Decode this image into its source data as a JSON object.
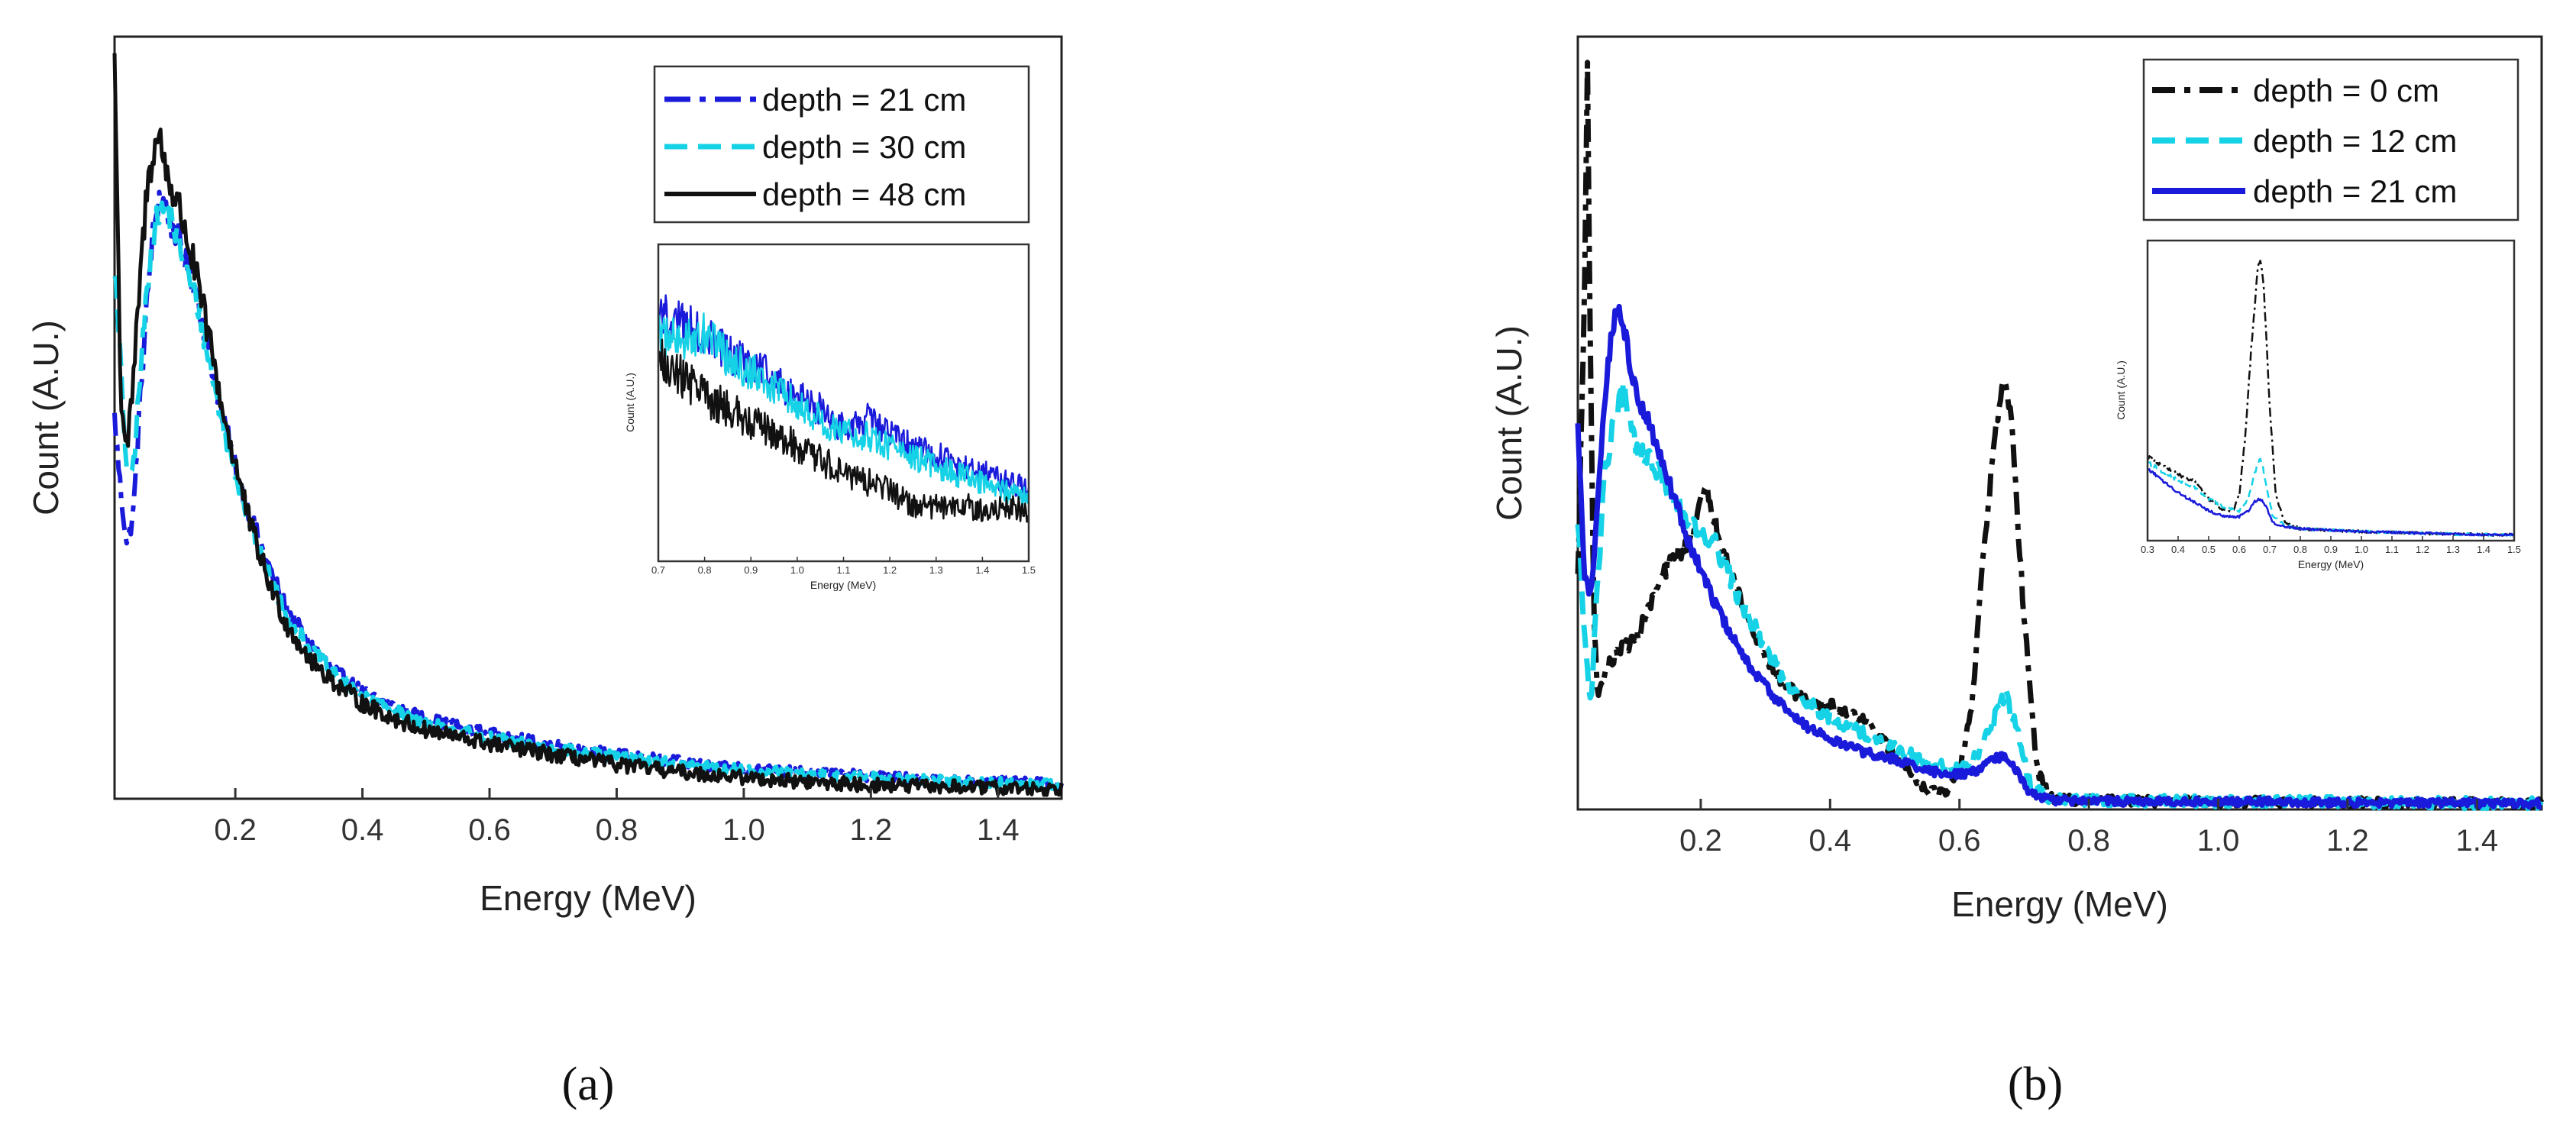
{
  "chart_data": [
    {
      "type": "line",
      "panel_label": "(a)",
      "xlabel": "Energy (MeV)",
      "ylabel": "Count (A.U.)",
      "xlim": [
        0.01,
        1.5
      ],
      "ylim": [
        0,
        1.0
      ],
      "xticks": [
        {
          "value": 0.2,
          "label": "0.2"
        },
        {
          "value": 0.4,
          "label": "0.4"
        },
        {
          "value": 0.6,
          "label": "0.6"
        },
        {
          "value": 0.8,
          "label": "0.8"
        },
        {
          "value": 1.0,
          "label": "1.0"
        },
        {
          "value": 1.2,
          "label": "1.2"
        },
        {
          "value": 1.4,
          "label": "1.4"
        }
      ],
      "legend_position": "top-right",
      "series": [
        {
          "name": "depth = 21 cm",
          "color": "#1a1adb",
          "dash": "dashdot",
          "width": 6,
          "noise": 0.016,
          "x": [
            0.01,
            0.02,
            0.03,
            0.04,
            0.05,
            0.06,
            0.07,
            0.08,
            0.09,
            0.1,
            0.11,
            0.12,
            0.14,
            0.16,
            0.18,
            0.2,
            0.22,
            0.25,
            0.28,
            0.32,
            0.36,
            0.4,
            0.45,
            0.5,
            0.6,
            0.7,
            0.8,
            0.9,
            1.0,
            1.1,
            1.2,
            1.3,
            1.4,
            1.5
          ],
          "y": [
            0.5,
            0.4,
            0.33,
            0.38,
            0.52,
            0.64,
            0.74,
            0.79,
            0.78,
            0.75,
            0.74,
            0.71,
            0.66,
            0.58,
            0.5,
            0.44,
            0.38,
            0.31,
            0.25,
            0.2,
            0.165,
            0.14,
            0.12,
            0.105,
            0.085,
            0.07,
            0.058,
            0.048,
            0.04,
            0.034,
            0.03,
            0.025,
            0.022,
            0.02
          ]
        },
        {
          "name": "depth = 30 cm",
          "color": "#16d2e6",
          "dash": "dashed",
          "width": 6,
          "noise": 0.016,
          "x": [
            0.01,
            0.02,
            0.03,
            0.04,
            0.05,
            0.06,
            0.07,
            0.08,
            0.09,
            0.1,
            0.11,
            0.12,
            0.14,
            0.16,
            0.18,
            0.2,
            0.22,
            0.25,
            0.28,
            0.32,
            0.36,
            0.4,
            0.45,
            0.5,
            0.6,
            0.7,
            0.8,
            0.9,
            1.0,
            1.1,
            1.2,
            1.3,
            1.4,
            1.5
          ],
          "y": [
            0.7,
            0.56,
            0.42,
            0.44,
            0.55,
            0.66,
            0.74,
            0.77,
            0.77,
            0.76,
            0.73,
            0.7,
            0.65,
            0.57,
            0.49,
            0.43,
            0.37,
            0.3,
            0.24,
            0.195,
            0.16,
            0.135,
            0.115,
            0.1,
            0.08,
            0.066,
            0.055,
            0.045,
            0.038,
            0.032,
            0.028,
            0.024,
            0.021,
            0.019
          ]
        },
        {
          "name": "depth = 48 cm",
          "color": "#111111",
          "dash": "solid",
          "width": 5,
          "noise": 0.022,
          "x": [
            0.01,
            0.015,
            0.02,
            0.03,
            0.04,
            0.05,
            0.06,
            0.07,
            0.08,
            0.09,
            0.1,
            0.11,
            0.12,
            0.14,
            0.16,
            0.18,
            0.2,
            0.22,
            0.25,
            0.28,
            0.32,
            0.36,
            0.4,
            0.45,
            0.5,
            0.6,
            0.7,
            0.8,
            0.9,
            1.0,
            1.1,
            1.2,
            1.3,
            1.4,
            1.5
          ],
          "y": [
            0.98,
            0.75,
            0.52,
            0.46,
            0.55,
            0.68,
            0.79,
            0.85,
            0.87,
            0.83,
            0.8,
            0.78,
            0.75,
            0.68,
            0.6,
            0.51,
            0.44,
            0.37,
            0.29,
            0.23,
            0.18,
            0.15,
            0.125,
            0.105,
            0.09,
            0.072,
            0.058,
            0.045,
            0.035,
            0.028,
            0.022,
            0.018,
            0.016,
            0.014,
            0.013
          ]
        }
      ],
      "inset": {
        "xlabel": "Energy (MeV)",
        "ylabel": "Count (A.U.)",
        "xlim": [
          0.7,
          1.5
        ],
        "ylim": [
          0,
          1.0
        ],
        "xticks": [
          {
            "value": 0.7,
            "label": "0.7"
          },
          {
            "value": 0.8,
            "label": "0.8"
          },
          {
            "value": 0.9,
            "label": "0.9"
          },
          {
            "value": 1.0,
            "label": "1.0"
          },
          {
            "value": 1.1,
            "label": "1.1"
          },
          {
            "value": 1.2,
            "label": "1.2"
          },
          {
            "value": 1.3,
            "label": "1.3"
          },
          {
            "value": 1.4,
            "label": "1.4"
          },
          {
            "value": 1.5,
            "label": "1.5"
          }
        ],
        "series": [
          {
            "name": "depth = 21 cm",
            "color": "#1a1adb",
            "dash": "solid",
            "width": 2.5,
            "noise": 0.06,
            "x": [
              0.7,
              0.75,
              0.8,
              0.85,
              0.9,
              0.95,
              1.0,
              1.05,
              1.1,
              1.15,
              1.2,
              1.25,
              1.3,
              1.35,
              1.4,
              1.45,
              1.5
            ],
            "y": [
              0.78,
              0.75,
              0.72,
              0.66,
              0.61,
              0.58,
              0.52,
              0.48,
              0.42,
              0.45,
              0.4,
              0.36,
              0.34,
              0.3,
              0.28,
              0.25,
              0.23
            ]
          },
          {
            "name": "depth = 30 cm",
            "color": "#16d2e6",
            "dash": "solid",
            "width": 2.5,
            "noise": 0.06,
            "x": [
              0.7,
              0.75,
              0.8,
              0.85,
              0.9,
              0.95,
              1.0,
              1.05,
              1.1,
              1.15,
              1.2,
              1.25,
              1.3,
              1.35,
              1.4,
              1.45,
              1.5
            ],
            "y": [
              0.72,
              0.7,
              0.72,
              0.64,
              0.6,
              0.55,
              0.5,
              0.45,
              0.4,
              0.4,
              0.36,
              0.33,
              0.3,
              0.27,
              0.25,
              0.22,
              0.2
            ]
          },
          {
            "name": "depth = 48 cm",
            "color": "#111111",
            "dash": "solid",
            "width": 2.5,
            "noise": 0.07,
            "x": [
              0.7,
              0.75,
              0.8,
              0.85,
              0.9,
              0.95,
              1.0,
              1.05,
              1.1,
              1.15,
              1.2,
              1.25,
              1.3,
              1.35,
              1.4,
              1.45,
              1.5
            ],
            "y": [
              0.66,
              0.58,
              0.52,
              0.48,
              0.44,
              0.4,
              0.36,
              0.32,
              0.28,
              0.25,
              0.22,
              0.18,
              0.17,
              0.18,
              0.16,
              0.17,
              0.16
            ]
          }
        ]
      }
    },
    {
      "type": "line",
      "panel_label": "(b)",
      "xlabel": "Energy (MeV)",
      "ylabel": "Count (A.U.)",
      "xlim": [
        0.01,
        1.5
      ],
      "ylim": [
        0,
        1.0
      ],
      "xticks": [
        {
          "value": 0.2,
          "label": "0.2"
        },
        {
          "value": 0.4,
          "label": "0.4"
        },
        {
          "value": 0.6,
          "label": "0.6"
        },
        {
          "value": 0.8,
          "label": "0.8"
        },
        {
          "value": 1.0,
          "label": "1.0"
        },
        {
          "value": 1.2,
          "label": "1.2"
        },
        {
          "value": 1.4,
          "label": "1.4"
        }
      ],
      "legend_position": "top-right",
      "series": [
        {
          "name": "depth = 0 cm",
          "color": "#111111",
          "dash": "dashdot",
          "width": 7,
          "noise": 0.015,
          "x": [
            0.01,
            0.02,
            0.025,
            0.03,
            0.035,
            0.04,
            0.05,
            0.06,
            0.08,
            0.1,
            0.12,
            0.14,
            0.16,
            0.18,
            0.2,
            0.21,
            0.22,
            0.25,
            0.28,
            0.32,
            0.36,
            0.4,
            0.45,
            0.5,
            0.55,
            0.58,
            0.6,
            0.62,
            0.64,
            0.66,
            0.67,
            0.68,
            0.7,
            0.72,
            0.74,
            0.78,
            0.85,
            0.95,
            1.05,
            1.15,
            1.25,
            1.35,
            1.45,
            1.5
          ],
          "y": [
            0.3,
            0.65,
            0.97,
            0.55,
            0.25,
            0.15,
            0.17,
            0.19,
            0.21,
            0.22,
            0.26,
            0.3,
            0.33,
            0.34,
            0.4,
            0.41,
            0.38,
            0.3,
            0.23,
            0.17,
            0.14,
            0.135,
            0.12,
            0.07,
            0.025,
            0.02,
            0.05,
            0.14,
            0.36,
            0.52,
            0.55,
            0.5,
            0.25,
            0.05,
            0.015,
            0.012,
            0.011,
            0.01,
            0.01,
            0.009,
            0.009,
            0.008,
            0.008,
            0.008
          ]
        },
        {
          "name": "depth = 12 cm",
          "color": "#16d2e6",
          "dash": "dashed",
          "width": 7,
          "noise": 0.018,
          "x": [
            0.01,
            0.02,
            0.03,
            0.04,
            0.05,
            0.06,
            0.07,
            0.08,
            0.09,
            0.1,
            0.12,
            0.14,
            0.16,
            0.18,
            0.2,
            0.22,
            0.25,
            0.28,
            0.32,
            0.36,
            0.4,
            0.45,
            0.5,
            0.55,
            0.6,
            0.63,
            0.65,
            0.67,
            0.69,
            0.71,
            0.74,
            0.8,
            0.9,
            1.0,
            1.1,
            1.2,
            1.3,
            1.4,
            1.5
          ],
          "y": [
            0.38,
            0.22,
            0.14,
            0.28,
            0.42,
            0.48,
            0.52,
            0.54,
            0.52,
            0.47,
            0.45,
            0.43,
            0.4,
            0.37,
            0.36,
            0.35,
            0.29,
            0.24,
            0.18,
            0.14,
            0.12,
            0.1,
            0.08,
            0.06,
            0.05,
            0.07,
            0.11,
            0.15,
            0.1,
            0.03,
            0.015,
            0.012,
            0.011,
            0.01,
            0.01,
            0.009,
            0.009,
            0.008,
            0.008
          ]
        },
        {
          "name": "depth = 21 cm",
          "color": "#1a1adb",
          "dash": "solid",
          "width": 7,
          "noise": 0.012,
          "x": [
            0.01,
            0.02,
            0.03,
            0.04,
            0.05,
            0.06,
            0.07,
            0.08,
            0.09,
            0.1,
            0.12,
            0.14,
            0.16,
            0.18,
            0.2,
            0.22,
            0.25,
            0.28,
            0.32,
            0.36,
            0.4,
            0.45,
            0.5,
            0.55,
            0.6,
            0.63,
            0.65,
            0.67,
            0.69,
            0.71,
            0.74,
            0.8,
            0.9,
            1.0,
            1.1,
            1.2,
            1.3,
            1.4,
            1.5
          ],
          "y": [
            0.5,
            0.3,
            0.28,
            0.38,
            0.52,
            0.6,
            0.65,
            0.63,
            0.58,
            0.54,
            0.5,
            0.45,
            0.4,
            0.35,
            0.31,
            0.27,
            0.22,
            0.18,
            0.14,
            0.11,
            0.09,
            0.075,
            0.065,
            0.05,
            0.045,
            0.05,
            0.065,
            0.07,
            0.05,
            0.02,
            0.012,
            0.011,
            0.01,
            0.01,
            0.01,
            0.009,
            0.009,
            0.008,
            0.008
          ]
        }
      ],
      "inset": {
        "xlabel": "Energy (MeV)",
        "ylabel": "Count (A.U.)",
        "xlim": [
          0.3,
          1.5
        ],
        "ylim": [
          0,
          1.0
        ],
        "xticks": [
          {
            "value": 0.3,
            "label": "0.3"
          },
          {
            "value": 0.4,
            "label": "0.4"
          },
          {
            "value": 0.5,
            "label": "0.5"
          },
          {
            "value": 0.6,
            "label": "0.6"
          },
          {
            "value": 0.7,
            "label": "0.7"
          },
          {
            "value": 0.8,
            "label": "0.8"
          },
          {
            "value": 0.9,
            "label": "0.9"
          },
          {
            "value": 1.0,
            "label": "1.0"
          },
          {
            "value": 1.1,
            "label": "1.1"
          },
          {
            "value": 1.2,
            "label": "1.2"
          },
          {
            "value": 1.3,
            "label": "1.3"
          },
          {
            "value": 1.4,
            "label": "1.4"
          },
          {
            "value": 1.5,
            "label": "1.5"
          }
        ],
        "series": [
          {
            "name": "depth = 0 cm",
            "color": "#111111",
            "dash": "dashdot",
            "width": 2.5,
            "noise": 0.01,
            "x": [
              0.3,
              0.35,
              0.4,
              0.45,
              0.5,
              0.55,
              0.58,
              0.6,
              0.62,
              0.64,
              0.66,
              0.67,
              0.68,
              0.7,
              0.72,
              0.75,
              0.8,
              0.9,
              1.0,
              1.1,
              1.2,
              1.3,
              1.4,
              1.5
            ],
            "y": [
              0.28,
              0.25,
              0.22,
              0.2,
              0.14,
              0.1,
              0.1,
              0.15,
              0.35,
              0.65,
              0.9,
              0.95,
              0.85,
              0.45,
              0.15,
              0.06,
              0.04,
              0.035,
              0.03,
              0.028,
              0.025,
              0.022,
              0.02,
              0.02
            ]
          },
          {
            "name": "depth = 12 cm",
            "color": "#16d2e6",
            "dash": "dashed",
            "width": 2.5,
            "noise": 0.01,
            "x": [
              0.3,
              0.35,
              0.4,
              0.45,
              0.5,
              0.55,
              0.6,
              0.63,
              0.65,
              0.67,
              0.69,
              0.71,
              0.75,
              0.8,
              0.9,
              1.0,
              1.1,
              1.2,
              1.3,
              1.4,
              1.5
            ],
            "y": [
              0.26,
              0.23,
              0.2,
              0.18,
              0.14,
              0.11,
              0.1,
              0.14,
              0.22,
              0.28,
              0.18,
              0.08,
              0.05,
              0.04,
              0.035,
              0.03,
              0.028,
              0.025,
              0.022,
              0.02,
              0.02
            ]
          },
          {
            "name": "depth = 21 cm",
            "color": "#1a1adb",
            "dash": "solid",
            "width": 2.5,
            "noise": 0.008,
            "x": [
              0.3,
              0.35,
              0.4,
              0.45,
              0.5,
              0.55,
              0.6,
              0.63,
              0.65,
              0.67,
              0.69,
              0.71,
              0.75,
              0.8,
              0.9,
              1.0,
              1.1,
              1.2,
              1.3,
              1.4,
              1.5
            ],
            "y": [
              0.24,
              0.2,
              0.16,
              0.13,
              0.1,
              0.08,
              0.08,
              0.1,
              0.13,
              0.14,
              0.11,
              0.06,
              0.045,
              0.04,
              0.035,
              0.03,
              0.028,
              0.025,
              0.022,
              0.02,
              0.02
            ]
          }
        ]
      }
    }
  ]
}
